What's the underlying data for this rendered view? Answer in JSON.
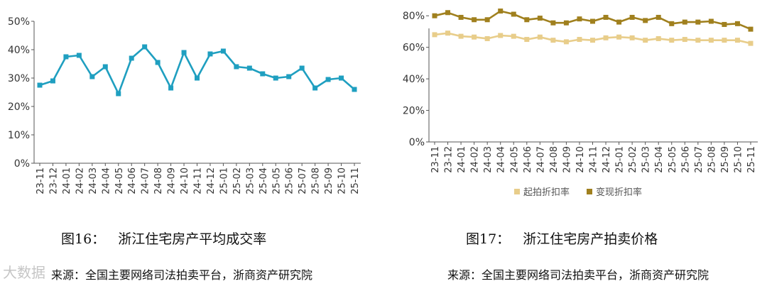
{
  "chart_data": [
    {
      "type": "line",
      "x": [
        "23-11",
        "23-12",
        "24-01",
        "24-02",
        "24-03",
        "24-04",
        "24-05",
        "24-06",
        "24-07",
        "24-08",
        "24-09",
        "24-10",
        "24-11",
        "24-12",
        "25-01",
        "25-02",
        "25-03",
        "25-04",
        "25-05",
        "25-06",
        "25-07",
        "25-08",
        "25-09",
        "25-10",
        "25-11"
      ],
      "series": [
        {
          "values": [
            27.5,
            29,
            37.5,
            38,
            30.5,
            34,
            24.5,
            37,
            41,
            35.5,
            26.5,
            39,
            30,
            38.5,
            39.5,
            34,
            33.5,
            31.5,
            30,
            30.5,
            33.5,
            26.5,
            29.5,
            30,
            26
          ]
        }
      ],
      "yticks": [
        "0%",
        "10%",
        "20%",
        "30%",
        "40%",
        "50%"
      ],
      "ylim": [
        0,
        50
      ],
      "grid": false,
      "color": "#1f9fc0"
    },
    {
      "type": "line",
      "x": [
        "23-11",
        "23-12",
        "24-01",
        "24-02",
        "24-03",
        "24-04",
        "24-05",
        "24-06",
        "24-07",
        "24-08",
        "24-09",
        "24-10",
        "24-11",
        "24-12",
        "25-01",
        "25-02",
        "25-03",
        "25-04",
        "25-05",
        "25-06",
        "25-07",
        "25-08",
        "25-09",
        "25-10",
        "25-11"
      ],
      "series": [
        {
          "name": "起拍折扣率",
          "color": "#e8cd8a",
          "values": [
            68,
            69,
            67,
            66.5,
            65.5,
            67.5,
            67,
            65,
            66.5,
            64.5,
            63.5,
            65,
            64.5,
            66,
            66.5,
            66,
            64.5,
            65.5,
            64.5,
            65,
            64.5,
            64.5,
            64.5,
            64.5,
            62.5
          ]
        },
        {
          "name": "变现折扣率",
          "color": "#a0801e",
          "values": [
            80,
            82,
            79,
            77.5,
            77.5,
            83,
            81,
            77.5,
            78.5,
            75.5,
            75.5,
            78,
            76.5,
            79,
            76,
            79,
            77,
            79,
            75,
            76,
            76,
            76.5,
            74.5,
            75,
            71.5
          ]
        }
      ],
      "yticks": [
        "0%",
        "20%",
        "40%",
        "60%",
        "80%"
      ],
      "ylim": [
        0,
        90
      ],
      "grid": false,
      "legend": "bottom"
    }
  ],
  "captions": {
    "left_title": "图16：   浙江住宅房产平均成交率",
    "right_title": "图17：   浙江住宅房产拍卖价格",
    "left_source": "来源：全国主要网络司法拍卖平台，浙商资产研究院",
    "right_source": "来源：全国主要网络司法拍卖平台，浙商资产研究院"
  },
  "watermark": "大数据"
}
